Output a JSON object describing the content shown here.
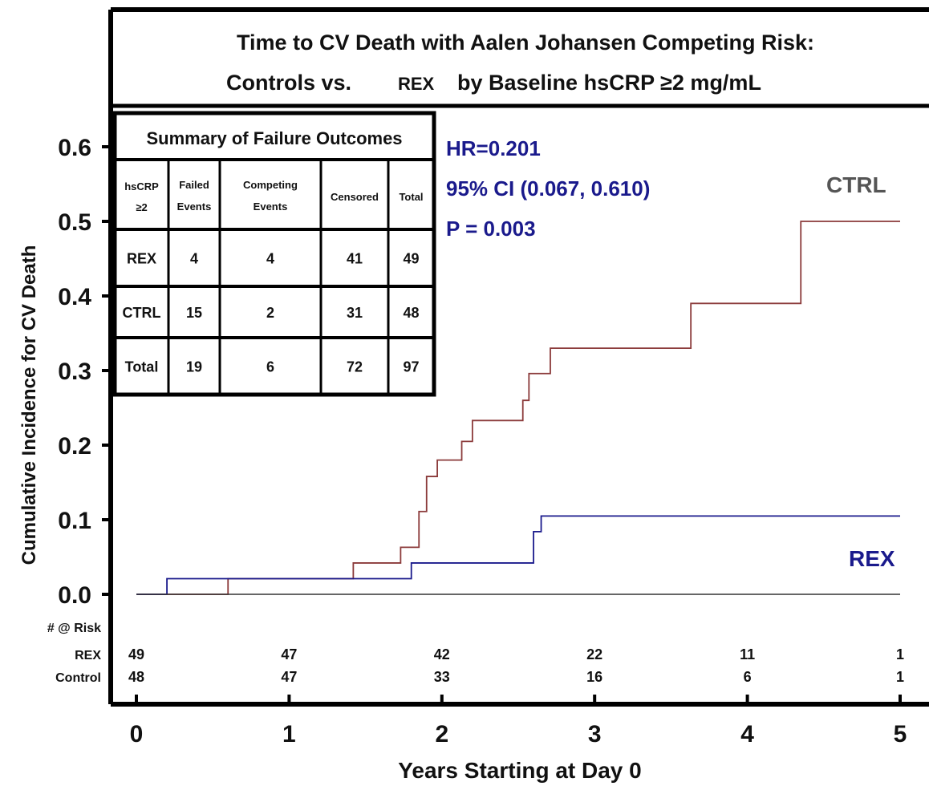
{
  "colors": {
    "ctrl_line": "#8b3a3a",
    "rex_line": "#1a1a8c",
    "stats_text": "#1a1a8c",
    "ctrl_label": "#555555",
    "rex_label": "#1a1a8c",
    "axis": "#000000"
  },
  "chart_data": {
    "type": "line",
    "title_line1": "Time to CV Death with Aalen Johansen Competing Risk:",
    "title_line2_a": "Controls vs.",
    "title_line2_b": "REX",
    "title_line2_c": "by Baseline hsCRP ≥2 mg/mL",
    "xlabel": "Years Starting at Day 0",
    "ylabel": "Cumulative Incidence for CV Death",
    "xlim": [
      0,
      5
    ],
    "ylim": [
      0,
      0.6
    ],
    "x_ticks": [
      "0",
      "1",
      "2",
      "3",
      "4",
      "5"
    ],
    "y_ticks": [
      "0.0",
      "0.1",
      "0.2",
      "0.3",
      "0.4",
      "0.5",
      "0.6"
    ],
    "grid": false,
    "series": [
      {
        "name": "CTRL",
        "x": [
          0,
          0.2,
          0.6,
          1.38,
          1.42,
          1.73,
          1.85,
          1.9,
          1.97,
          2.13,
          2.2,
          2.53,
          2.57,
          2.71,
          3.63,
          4.35,
          5
        ],
        "y": [
          0,
          0,
          0.021,
          0.021,
          0.042,
          0.063,
          0.111,
          0.158,
          0.18,
          0.205,
          0.233,
          0.26,
          0.296,
          0.33,
          0.39,
          0.5,
          0.5
        ],
        "steps": true
      },
      {
        "name": "REX",
        "x": [
          0,
          0.2,
          0.6,
          1.38,
          1.8,
          2.6,
          2.65,
          5
        ],
        "y": [
          0,
          0.021,
          0.021,
          0.021,
          0.042,
          0.084,
          0.105,
          0.105
        ],
        "steps": true
      },
      {
        "name": "baseline",
        "x": [
          0,
          5
        ],
        "y": [
          0,
          0
        ],
        "steps": false
      }
    ],
    "stats": {
      "hr": "HR=0.201",
      "ci": "95% CI (0.067, 0.610)",
      "p": "P = 0.003"
    },
    "line_labels": {
      "ctrl": "CTRL",
      "rex": "REX"
    },
    "summary_table": {
      "title": "Summary of Failure Outcomes",
      "header_row_label": [
        "hsCRP",
        "≥2"
      ],
      "columns": [
        [
          "Failed",
          "Events"
        ],
        [
          "Competing",
          "Events"
        ],
        [
          "Censored"
        ],
        [
          "Total"
        ]
      ],
      "rows": [
        {
          "label": "REX",
          "values": [
            "4",
            "4",
            "41",
            "49"
          ]
        },
        {
          "label": "CTRL",
          "values": [
            "15",
            "2",
            "31",
            "48"
          ]
        },
        {
          "label": "Total",
          "values": [
            "19",
            "6",
            "72",
            "97"
          ]
        }
      ]
    },
    "at_risk": {
      "title": "# @ Risk",
      "rows": [
        {
          "label": "REX",
          "values": [
            "49",
            "47",
            "42",
            "22",
            "11",
            "1"
          ]
        },
        {
          "label": "Control",
          "values": [
            "48",
            "47",
            "33",
            "16",
            "6",
            "1"
          ]
        }
      ]
    }
  }
}
